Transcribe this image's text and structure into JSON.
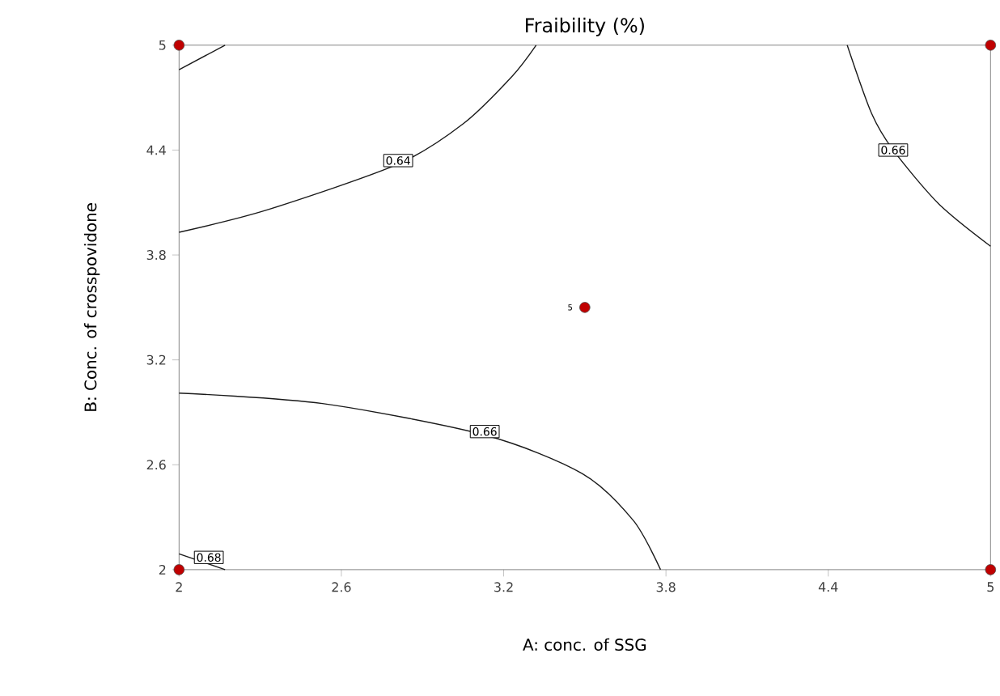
{
  "chart_data": {
    "type": "scatter",
    "title": "Fraibility (%)",
    "xlabel": "A: conc. of SSG",
    "ylabel": "B: Conc. of crosspovidone",
    "xlim": [
      2,
      5
    ],
    "ylim": [
      2,
      5
    ],
    "xticks": [
      2,
      2.6,
      3.2,
      3.8,
      4.4,
      5
    ],
    "yticks": [
      2,
      2.6,
      3.2,
      3.8,
      4.4,
      5
    ],
    "grid": false,
    "line_style": "solid",
    "series": [
      {
        "marker": "circle",
        "color": "#c00000",
        "x": [
          2,
          2,
          5,
          5,
          3.5
        ],
        "values": [
          2,
          5,
          2,
          5,
          3.5
        ]
      },
      {
        "type": "line",
        "color": "#1a1a1a",
        "x": [
          2,
          2.17
        ],
        "values": [
          4.86,
          5
        ]
      },
      {
        "type": "line",
        "color": "#1a1a1a",
        "x": [
          2,
          2.33,
          2.81,
          3.05,
          3.23,
          3.32
        ],
        "values": [
          3.93,
          4.06,
          4.32,
          4.55,
          4.82,
          5
        ]
      },
      {
        "type": "line",
        "color": "#1a1a1a",
        "x": [
          4.47,
          4.56,
          4.64,
          4.81,
          5
        ],
        "values": [
          5,
          4.61,
          4.4,
          4.09,
          3.85
        ]
      },
      {
        "type": "line",
        "color": "#1a1a1a",
        "x": [
          2,
          2.53,
          3.13,
          3.49,
          3.68,
          3.78
        ],
        "values": [
          3.01,
          2.95,
          2.77,
          2.55,
          2.28,
          2
        ]
      },
      {
        "type": "line",
        "color": "#1a1a1a",
        "x": [
          2,
          2.17
        ],
        "values": [
          2.09,
          2
        ]
      }
    ],
    "annotations": [
      {
        "text": "0.64",
        "x": 2.81,
        "y": 4.34
      },
      {
        "text": "0.66",
        "x": 4.64,
        "y": 4.4
      },
      {
        "text": "0.66",
        "x": 3.13,
        "y": 2.79
      },
      {
        "text": "0.68",
        "x": 2.11,
        "y": 2.07
      },
      {
        "text": "5",
        "x": 3.5,
        "y": 3.5
      }
    ]
  }
}
